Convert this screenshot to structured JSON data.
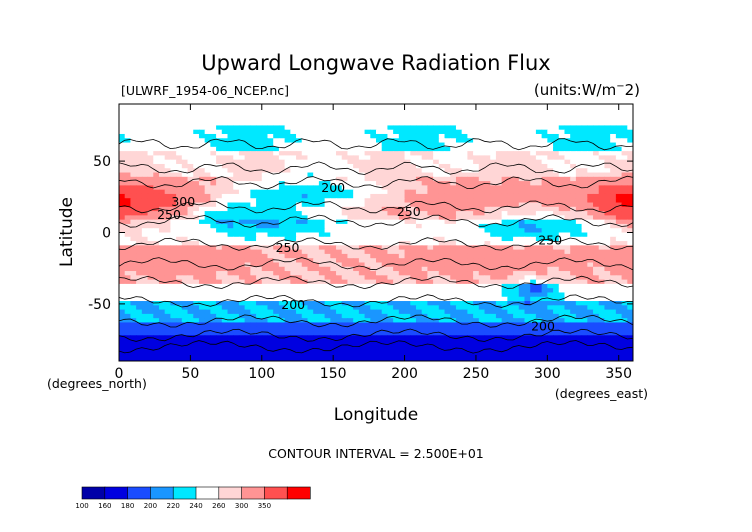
{
  "chart_data": {
    "type": "heatmap",
    "title": "Upward Longwave Radiation Flux",
    "file_label": "[ULWRF_1954-06_NCEP.nc]",
    "units_label": "(units:W/m^2)",
    "xlabel": "Longitude",
    "ylabel": "Latitude",
    "x_unit_label": "(degrees_east)",
    "y_unit_label": "(degrees_north)",
    "xlim": [
      0,
      360
    ],
    "ylim": [
      -90,
      90
    ],
    "x_ticks": [
      0,
      50,
      100,
      150,
      200,
      250,
      300,
      350
    ],
    "y_ticks": [
      -50,
      0,
      50
    ],
    "contour_interval_text": "CONTOUR INTERVAL = 2.500E+01",
    "contour_labels": [
      {
        "text": "300",
        "lon": 45,
        "lat": 22
      },
      {
        "text": "250",
        "lon": 35,
        "lat": 13
      },
      {
        "text": "200",
        "lon": 150,
        "lat": 32
      },
      {
        "text": "250",
        "lon": 203,
        "lat": 15
      },
      {
        "text": "250",
        "lon": 118,
        "lat": -10
      },
      {
        "text": "250",
        "lon": 302,
        "lat": -5
      },
      {
        "text": "200",
        "lon": 122,
        "lat": -50
      },
      {
        "text": "200",
        "lon": 297,
        "lat": -65
      }
    ],
    "colorbar": {
      "tick_labels": [
        "100",
        "160",
        "180",
        "200",
        "220",
        "240",
        "260",
        "300",
        "350"
      ],
      "colors": [
        "#0000a8",
        "#0000e0",
        "#1a4cff",
        "#1a96ff",
        "#00e8ff",
        "#ffffff",
        "#ffd6d6",
        "#ff9494",
        "#ff5050",
        "#ff0000"
      ]
    },
    "zonal_bands": [
      {
        "lat": [
          75,
          90
        ],
        "value": "220-240"
      },
      {
        "lat": [
          55,
          75
        ],
        "value": "200-240"
      },
      {
        "lat": [
          35,
          55
        ],
        "value": "220-260"
      },
      {
        "lat": [
          10,
          35
        ],
        "value": "200-300"
      },
      {
        "lat": [
          -10,
          10
        ],
        "value": "200-280"
      },
      {
        "lat": [
          -35,
          -10
        ],
        "value": "240-280"
      },
      {
        "lat": [
          -50,
          -35
        ],
        "value": "200-240"
      },
      {
        "lat": [
          -65,
          -50
        ],
        "value": "180-220"
      },
      {
        "lat": [
          -90,
          -65
        ],
        "value": "100-180"
      }
    ]
  }
}
